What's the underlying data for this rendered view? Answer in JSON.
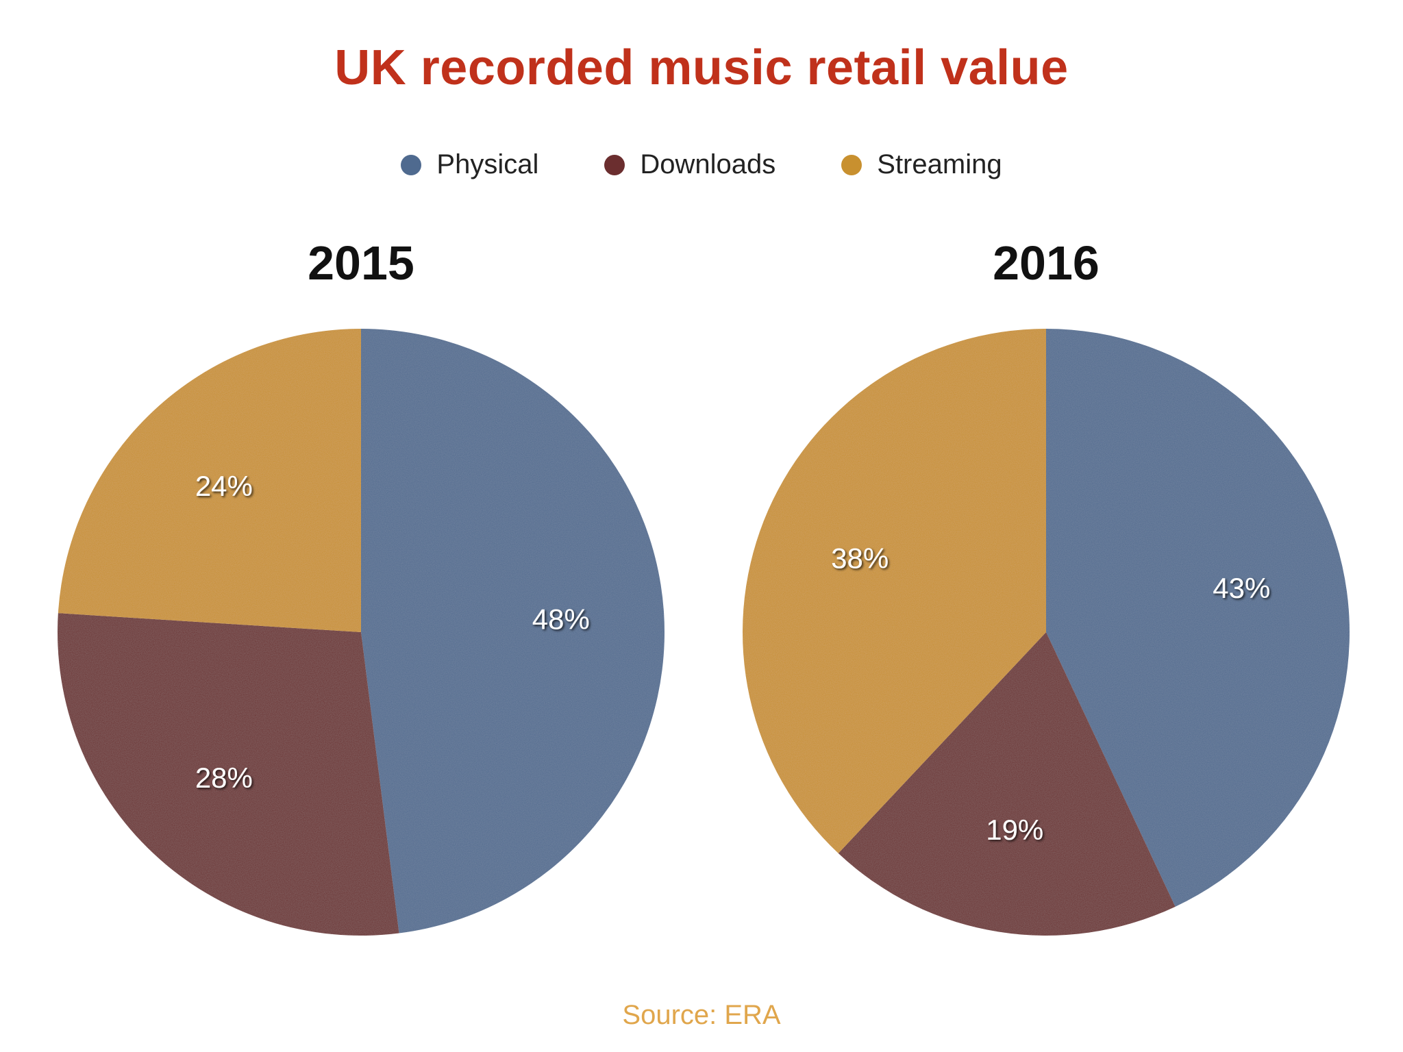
{
  "title": "UK recorded music retail value",
  "source": "Source: ERA",
  "legend": [
    {
      "name": "Physical",
      "color": "#4f6a8f"
    },
    {
      "name": "Downloads",
      "color": "#6b2e2f"
    },
    {
      "name": "Streaming",
      "color": "#c8902f"
    }
  ],
  "chart_data": [
    {
      "type": "pie",
      "title": "2015",
      "categories": [
        "Physical",
        "Downloads",
        "Streaming"
      ],
      "values": [
        48,
        28,
        24
      ],
      "labels": [
        "48%",
        "28%",
        "24%"
      ],
      "colors": [
        "#4f6a8f",
        "#6b2e2f",
        "#c8902f"
      ],
      "start": "12 o'clock",
      "direction": "clockwise"
    },
    {
      "type": "pie",
      "title": "2016",
      "categories": [
        "Physical",
        "Downloads",
        "Streaming"
      ],
      "values": [
        43,
        19,
        38
      ],
      "labels": [
        "43%",
        "19%",
        "38%"
      ],
      "colors": [
        "#4f6a8f",
        "#6b2e2f",
        "#c8902f"
      ],
      "start": "12 o'clock",
      "direction": "clockwise"
    }
  ]
}
